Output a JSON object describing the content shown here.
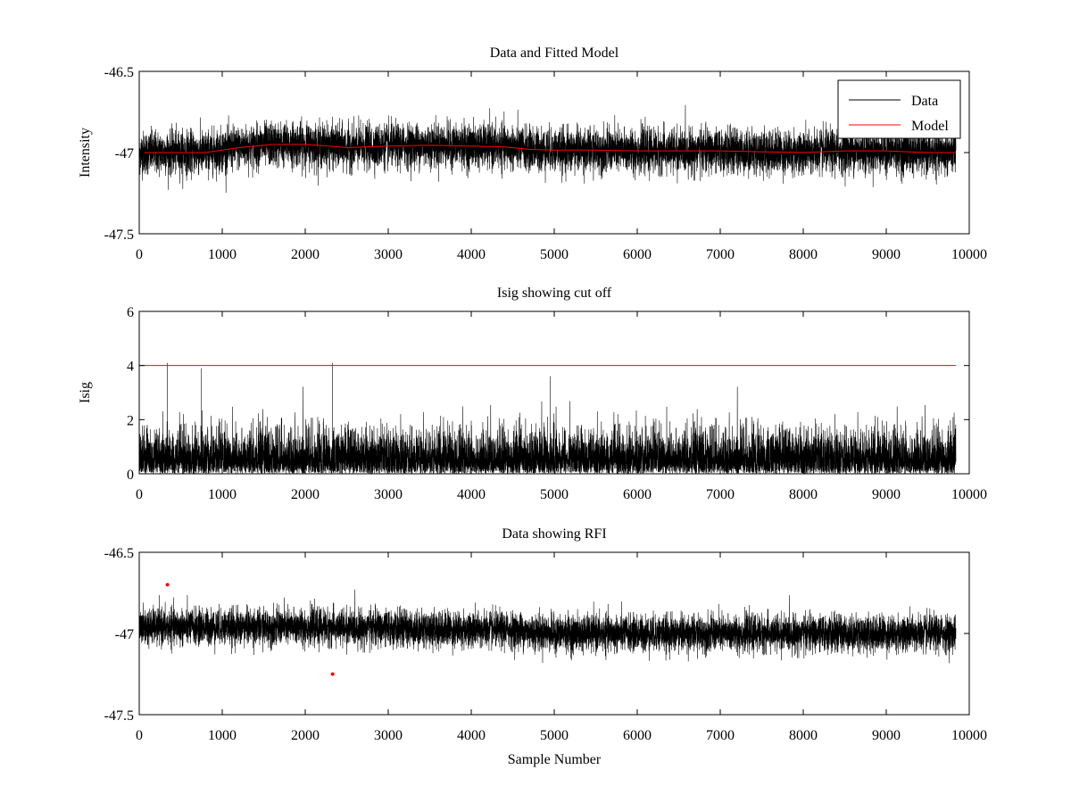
{
  "chart_data": [
    {
      "type": "line",
      "title": "Data and Fitted Model",
      "xlabel": "",
      "ylabel": "Intensity",
      "xlim": [
        0,
        10000
      ],
      "ylim": [
        -47.5,
        -46.5
      ],
      "xticks": [
        0,
        1000,
        2000,
        3000,
        4000,
        5000,
        6000,
        7000,
        8000,
        9000,
        10000
      ],
      "yticks": [
        -47.5,
        -47,
        -46.5
      ],
      "grid": false,
      "legend": "top-right",
      "series": [
        {
          "name": "Data",
          "color": "#000000",
          "kind": "noise",
          "n_samples": 9840,
          "noise_amplitude": 0.12,
          "baseline": "Model"
        },
        {
          "name": "Model",
          "color": "#ff0000",
          "x": [
            0,
            500,
            800,
            1200,
            1600,
            2000,
            2300,
            2500,
            3000,
            3500,
            4000,
            4400,
            4700,
            5000,
            5500,
            6000,
            6500,
            7000,
            7500,
            8000,
            8500,
            9000,
            9500,
            9840
          ],
          "y": [
            -47.0,
            -47.0,
            -47.0,
            -46.97,
            -46.95,
            -46.95,
            -46.96,
            -46.97,
            -46.96,
            -46.955,
            -46.96,
            -46.965,
            -46.98,
            -46.985,
            -46.985,
            -46.99,
            -46.99,
            -46.99,
            -46.995,
            -47.0,
            -46.99,
            -46.99,
            -47.0,
            -47.0
          ]
        }
      ]
    },
    {
      "type": "line",
      "title": "Isig showing cut off",
      "xlabel": "",
      "ylabel": "Isig",
      "xlim": [
        0,
        10000
      ],
      "ylim": [
        0,
        6
      ],
      "xticks": [
        0,
        1000,
        2000,
        3000,
        4000,
        5000,
        6000,
        7000,
        8000,
        9000,
        10000
      ],
      "yticks": [
        0,
        2,
        4,
        6
      ],
      "grid": false,
      "legend": "none",
      "series": [
        {
          "name": "",
          "color": "#000000",
          "kind": "noise",
          "n_samples": 9840,
          "range": [
            0,
            3.5
          ],
          "peaks": [
            {
              "x": 340,
              "y": 4.1
            },
            {
              "x": 2330,
              "y": 4.1
            },
            {
              "x": 750,
              "y": 3.9
            },
            {
              "x": 4950,
              "y": 3.6
            }
          ]
        },
        {
          "name": "",
          "color": "#ff0000",
          "x": [
            0,
            9840
          ],
          "y": [
            4,
            4
          ]
        }
      ]
    },
    {
      "type": "line",
      "title": "Data showing RFI",
      "xlabel": "Sample Number",
      "ylabel": "",
      "xlim": [
        0,
        10000
      ],
      "ylim": [
        -47.5,
        -46.5
      ],
      "xticks": [
        0,
        1000,
        2000,
        3000,
        4000,
        5000,
        6000,
        7000,
        8000,
        9000,
        10000
      ],
      "yticks": [
        -47.5,
        -47,
        -46.5
      ],
      "grid": false,
      "legend": "none",
      "series": [
        {
          "name": "",
          "color": "#000000",
          "kind": "noise",
          "n_samples": 9840,
          "noise_amplitude": 0.1,
          "baseline_points": {
            "x": [
              0,
              2000,
              4500,
              5000,
              9840
            ],
            "y": [
              -46.96,
              -46.96,
              -46.98,
              -47.0,
              -47.0
            ]
          }
        },
        {
          "name": "",
          "color": "#ff0000",
          "kind": "markers",
          "x": [
            340,
            2330
          ],
          "y": [
            -46.7,
            -47.25
          ]
        }
      ]
    }
  ]
}
